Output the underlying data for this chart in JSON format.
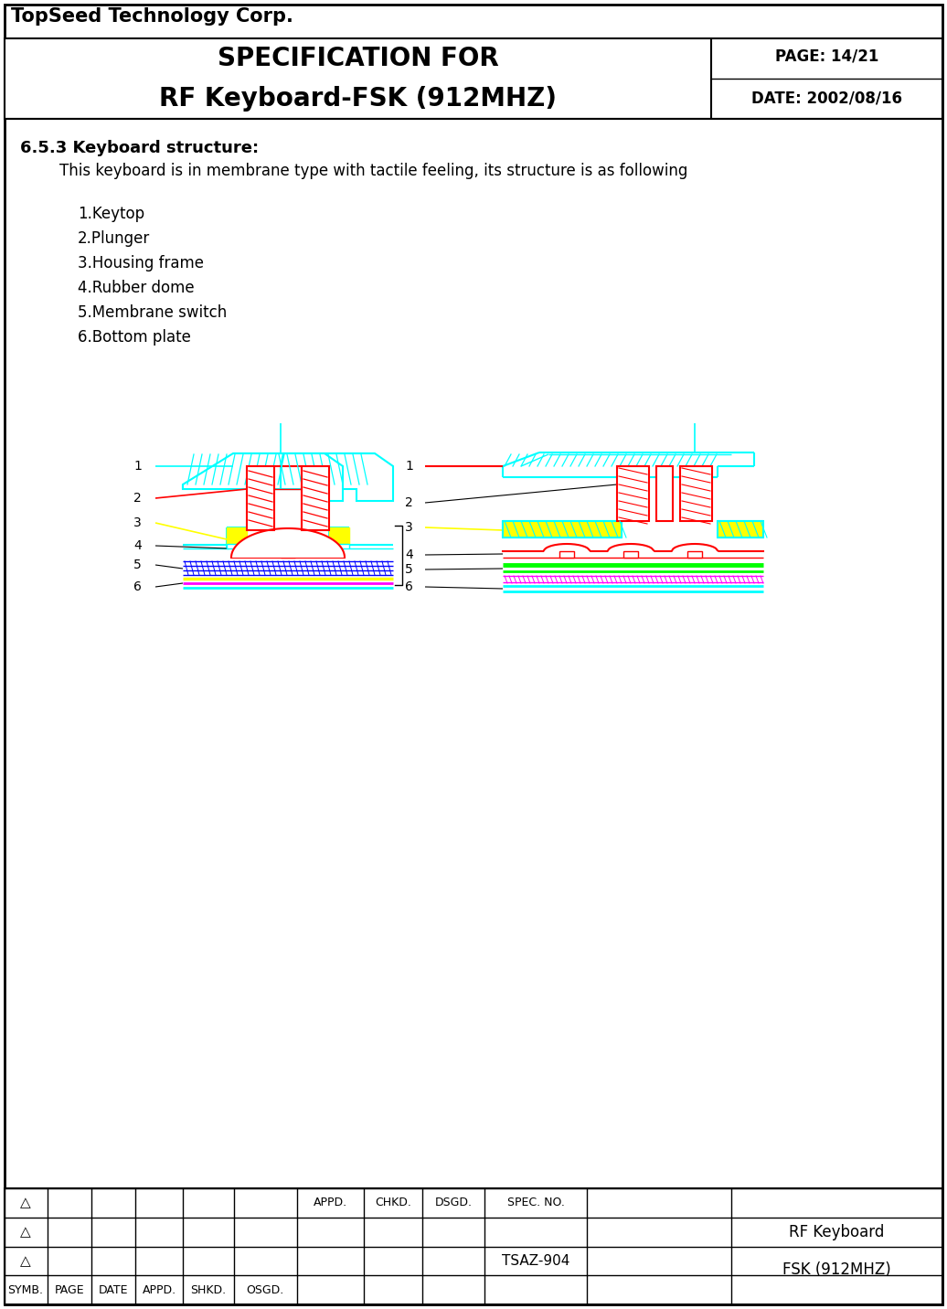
{
  "company": "TopSeed Technology Corp.",
  "title_line1": "SPECIFICATION FOR",
  "title_line2": "RF Keyboard‑FSK (912MHZ)",
  "page": "PAGE: 14/21",
  "date": "DATE: 2002/08/16",
  "section_title": "6.5.3 Keyboard structure:",
  "section_body": "This keyboard is in membrane type with tactile feeling, its structure is as following",
  "parts": [
    "1.Keytop",
    "2.Plunger",
    "3.Housing frame",
    "4.Rubber dome",
    "5.Membrane switch",
    "6.Bottom plate"
  ],
  "spec_no": "TSAZ-904",
  "product_name_line1": "RF Keyboard",
  "product_name_line2": "FSK (912MHZ)",
  "bg_color": "#ffffff",
  "cyan_color": "#00ffff",
  "red_color": "#ff0000",
  "yellow_color": "#ffff00",
  "green_color": "#00ff00",
  "magenta_color": "#ff00ff",
  "blue_color": "#0000ff",
  "black_color": "#000000"
}
